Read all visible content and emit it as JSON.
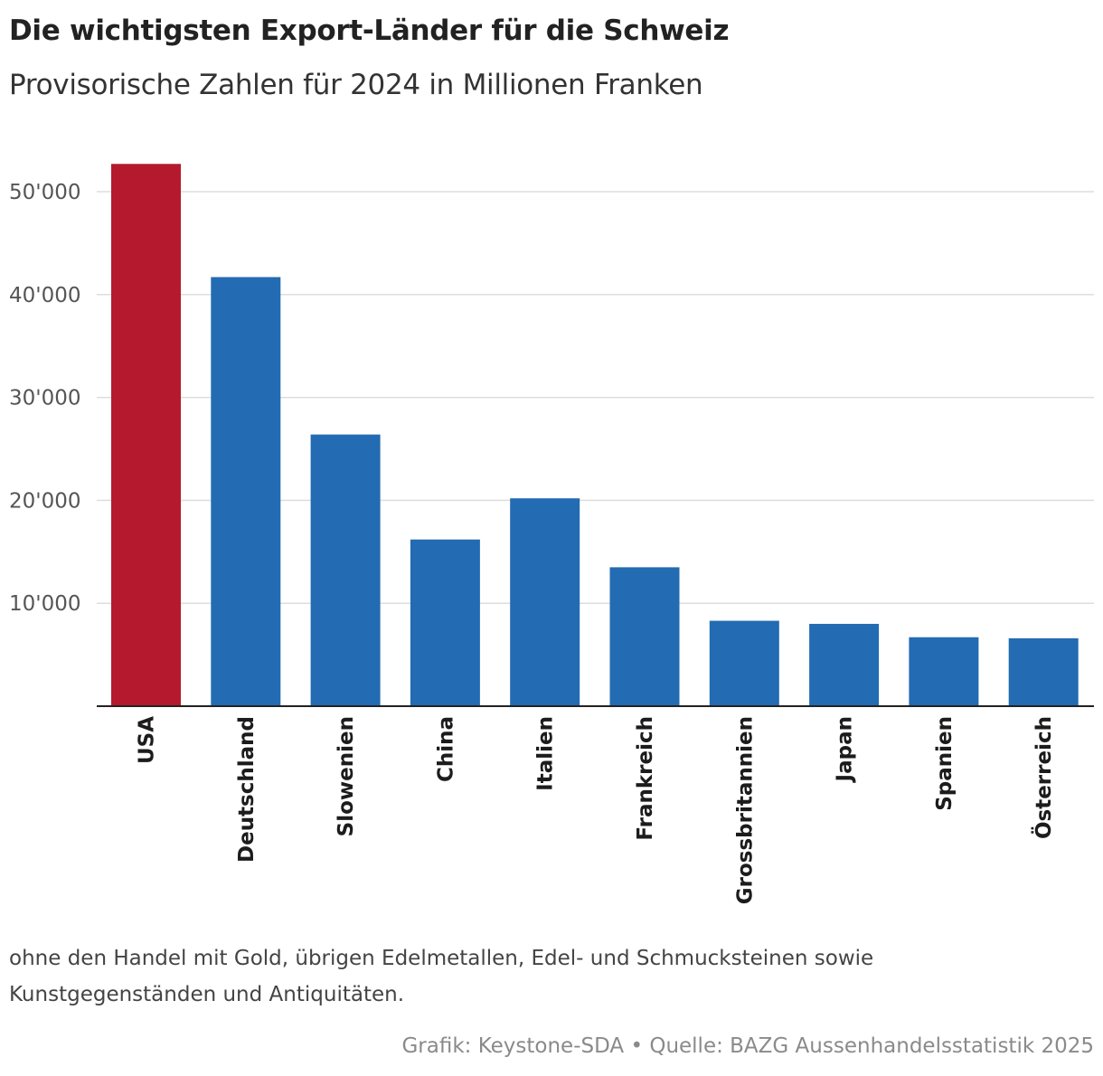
{
  "title": "Die wichtigsten Export-Länder für die Schweiz",
  "subtitle": "Provisorische Zahlen für 2024 in Millionen Franken",
  "note": "ohne den Handel mit Gold, übrigen Edelmetallen, Edel- und Schmucksteinen sowie Kunstgegenständen und Antiquitäten.",
  "credit": "Grafik: Keystone-SDA • Quelle: BAZG Aussenhandelsstatistik 2025",
  "colors": {
    "highlight": "#b5192d",
    "bar": "#236bb2",
    "grid": "#dddddd",
    "axis": "#222222"
  },
  "chart_data": {
    "type": "bar",
    "title": "Die wichtigsten Export-Länder für die Schweiz",
    "subtitle": "Provisorische Zahlen für 2024 in Millionen Franken",
    "xlabel": "",
    "ylabel": "",
    "categories": [
      "USA",
      "Deutschland",
      "Slowenien",
      "China",
      "Italien",
      "Frankreich",
      "Grossbritannien",
      "Japan",
      "Spanien",
      "Österreich"
    ],
    "values": [
      52700,
      41700,
      26400,
      16200,
      20200,
      13500,
      8300,
      8000,
      6700,
      6600
    ],
    "highlight": "USA",
    "ylim": [
      0,
      55000
    ],
    "yticks": [
      10000,
      20000,
      30000,
      40000,
      50000
    ],
    "ytick_labels": [
      "10'000",
      "20'000",
      "30'000",
      "40'000",
      "50'000"
    ],
    "grid": true,
    "legend": "none"
  }
}
